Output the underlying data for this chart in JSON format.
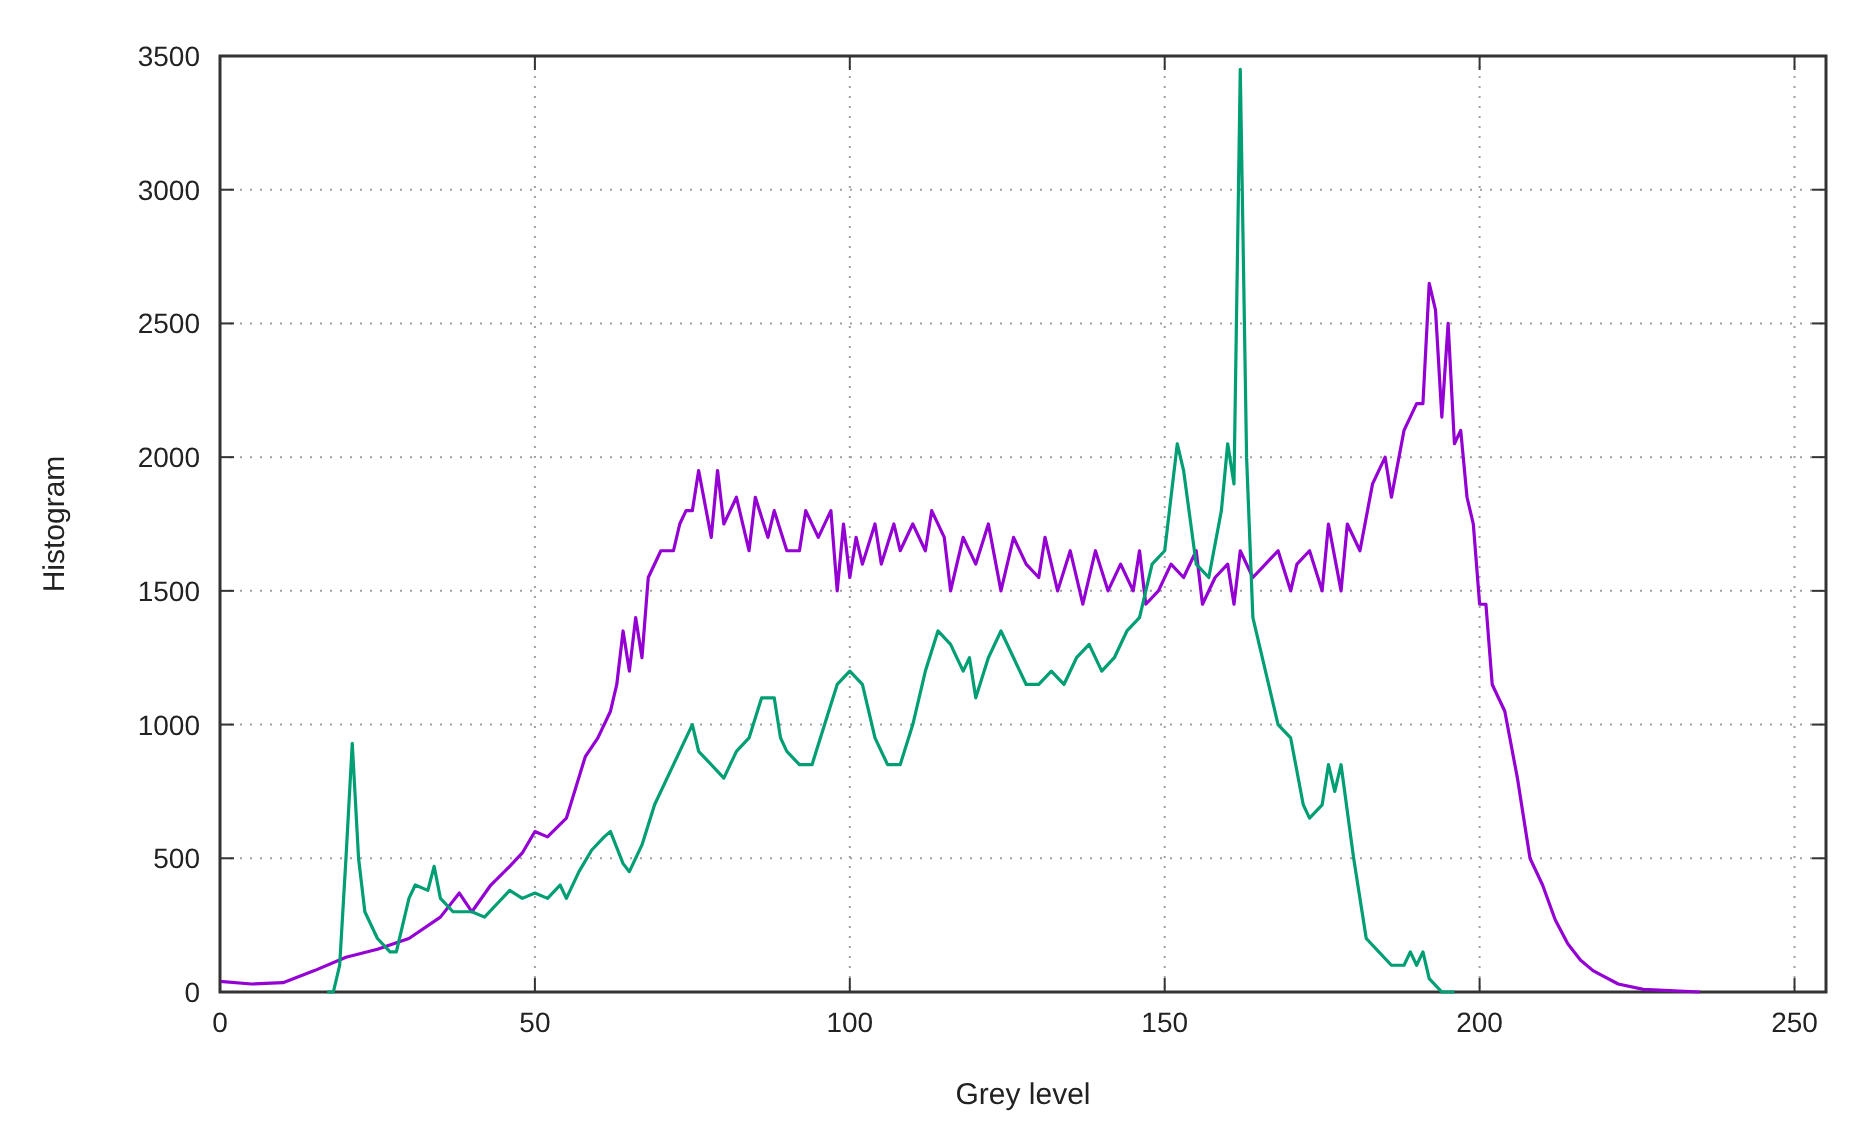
{
  "chart_data": {
    "type": "line",
    "xlabel": "Grey level",
    "ylabel": "Histogram",
    "xlim": [
      0,
      255
    ],
    "ylim": [
      0,
      3500
    ],
    "xticks": [
      0,
      50,
      100,
      150,
      200,
      250
    ],
    "yticks": [
      0,
      500,
      1000,
      1500,
      2000,
      2500,
      3000,
      3500
    ],
    "grid": true,
    "line_style": "solid",
    "marker": "none",
    "series": [
      {
        "color": "#9400d3",
        "x": [
          0,
          5,
          10,
          15,
          20,
          25,
          30,
          35,
          38,
          40,
          43,
          46,
          48,
          50,
          52,
          55,
          58,
          60,
          62,
          63,
          64,
          65,
          66,
          67,
          68,
          70,
          72,
          73,
          74,
          75,
          76,
          78,
          79,
          80,
          82,
          84,
          85,
          87,
          88,
          90,
          92,
          93,
          95,
          97,
          98,
          99,
          100,
          101,
          102,
          104,
          105,
          107,
          108,
          110,
          112,
          113,
          115,
          116,
          118,
          120,
          122,
          124,
          126,
          128,
          130,
          131,
          133,
          135,
          137,
          139,
          141,
          143,
          145,
          146,
          147,
          149,
          151,
          153,
          155,
          156,
          158,
          160,
          161,
          162,
          164,
          166,
          168,
          170,
          171,
          173,
          175,
          176,
          178,
          179,
          181,
          183,
          185,
          186,
          188,
          190,
          191,
          192,
          193,
          194,
          195,
          196,
          197,
          198,
          199,
          200,
          201,
          202,
          204,
          206,
          208,
          210,
          212,
          214,
          216,
          218,
          222,
          226,
          235
        ],
        "values": [
          40,
          30,
          35,
          80,
          130,
          160,
          200,
          280,
          370,
          300,
          400,
          470,
          520,
          600,
          580,
          650,
          880,
          950,
          1050,
          1150,
          1350,
          1200,
          1400,
          1250,
          1550,
          1650,
          1650,
          1750,
          1800,
          1800,
          1950,
          1700,
          1950,
          1750,
          1850,
          1650,
          1850,
          1700,
          1800,
          1650,
          1650,
          1800,
          1700,
          1800,
          1500,
          1750,
          1550,
          1700,
          1600,
          1750,
          1600,
          1750,
          1650,
          1750,
          1650,
          1800,
          1700,
          1500,
          1700,
          1600,
          1750,
          1500,
          1700,
          1600,
          1550,
          1700,
          1500,
          1650,
          1450,
          1650,
          1500,
          1600,
          1500,
          1650,
          1450,
          1500,
          1600,
          1550,
          1650,
          1450,
          1550,
          1600,
          1450,
          1650,
          1550,
          1600,
          1650,
          1500,
          1600,
          1650,
          1500,
          1750,
          1500,
          1750,
          1650,
          1900,
          2000,
          1850,
          2100,
          2200,
          2200,
          2650,
          2550,
          2150,
          2500,
          2050,
          2100,
          1850,
          1750,
          1450,
          1450,
          1150,
          1050,
          800,
          500,
          400,
          270,
          180,
          120,
          80,
          30,
          10,
          0
        ]
      },
      {
        "color": "#009e73",
        "x": [
          17,
          18,
          19,
          20,
          21,
          22,
          23,
          25,
          27,
          28,
          30,
          31,
          33,
          34,
          35,
          37,
          40,
          42,
          44,
          46,
          48,
          50,
          52,
          54,
          55,
          57,
          59,
          61,
          62,
          64,
          65,
          67,
          69,
          72,
          74,
          75,
          76,
          78,
          80,
          82,
          84,
          86,
          88,
          89,
          90,
          92,
          94,
          96,
          98,
          100,
          102,
          104,
          106,
          108,
          110,
          112,
          114,
          116,
          118,
          119,
          120,
          122,
          124,
          126,
          128,
          130,
          132,
          134,
          136,
          138,
          140,
          142,
          144,
          146,
          148,
          150,
          151,
          152,
          153,
          155,
          157,
          159,
          160,
          161,
          162,
          163,
          164,
          166,
          168,
          170,
          172,
          173,
          175,
          176,
          177,
          178,
          180,
          182,
          184,
          186,
          188,
          189,
          190,
          191,
          192,
          194,
          196
        ],
        "values": [
          0,
          0,
          100,
          500,
          930,
          500,
          300,
          200,
          150,
          150,
          350,
          400,
          380,
          470,
          350,
          300,
          300,
          280,
          330,
          380,
          350,
          370,
          350,
          400,
          350,
          450,
          530,
          580,
          600,
          480,
          450,
          550,
          700,
          850,
          950,
          1000,
          900,
          850,
          800,
          900,
          950,
          1100,
          1100,
          950,
          900,
          850,
          850,
          1000,
          1150,
          1200,
          1150,
          950,
          850,
          850,
          1000,
          1200,
          1350,
          1300,
          1200,
          1250,
          1100,
          1250,
          1350,
          1250,
          1150,
          1150,
          1200,
          1150,
          1250,
          1300,
          1200,
          1250,
          1350,
          1400,
          1600,
          1650,
          1850,
          2050,
          1950,
          1600,
          1550,
          1800,
          2050,
          1900,
          3450,
          2000,
          1400,
          1200,
          1000,
          950,
          700,
          650,
          700,
          850,
          750,
          850,
          500,
          200,
          150,
          100,
          100,
          150,
          100,
          150,
          50,
          0,
          0
        ]
      }
    ]
  }
}
